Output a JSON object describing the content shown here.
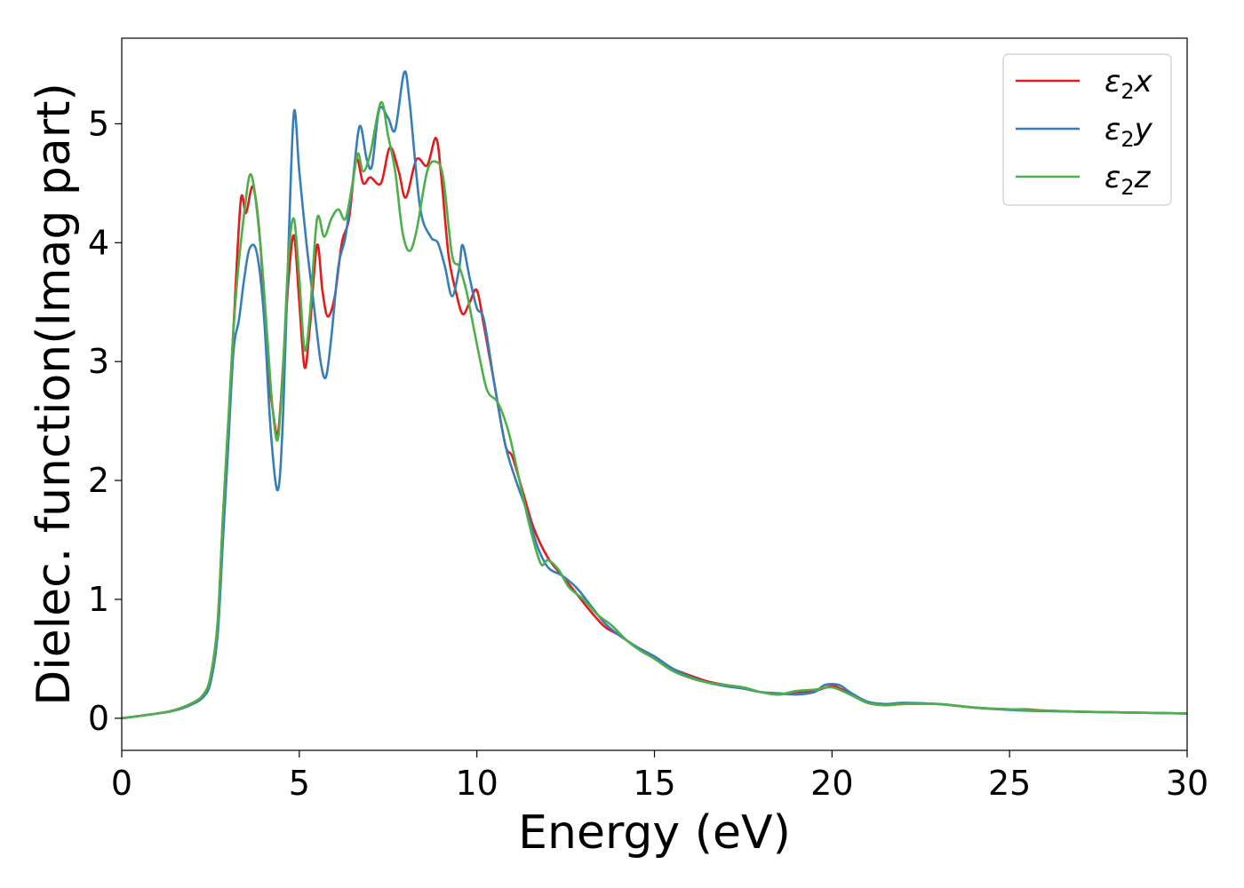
{
  "chart_data": {
    "type": "line",
    "xlabel": "Energy (eV)",
    "ylabel": "Dielec. function(Imag part)",
    "xlim": [
      0,
      30
    ],
    "ylim": [
      -0.27,
      5.72
    ],
    "xticks": [
      0,
      5,
      10,
      15,
      20,
      25,
      30
    ],
    "yticks": [
      0,
      1,
      2,
      3,
      4,
      5
    ],
    "grid": false,
    "legend_position": "top-right",
    "legend_symbol": "ε",
    "legend_subscript": "2",
    "series": [
      {
        "name": "ε2x",
        "legend_suffix": "x",
        "color": "#e41a1c",
        "points": [
          [
            0,
            0
          ],
          [
            1,
            0.04
          ],
          [
            1.5,
            0.07
          ],
          [
            2,
            0.13
          ],
          [
            2.3,
            0.2
          ],
          [
            2.5,
            0.35
          ],
          [
            2.7,
            0.8
          ],
          [
            2.85,
            1.7
          ],
          [
            3.0,
            2.45
          ],
          [
            3.15,
            3.3
          ],
          [
            3.35,
            4.35
          ],
          [
            3.5,
            4.25
          ],
          [
            3.7,
            4.47
          ],
          [
            3.9,
            4.0
          ],
          [
            4.1,
            3.0
          ],
          [
            4.25,
            2.6
          ],
          [
            4.4,
            2.4
          ],
          [
            4.55,
            3.0
          ],
          [
            4.7,
            3.7
          ],
          [
            4.85,
            4.06
          ],
          [
            5.0,
            3.5
          ],
          [
            5.15,
            2.95
          ],
          [
            5.3,
            3.3
          ],
          [
            5.5,
            3.98
          ],
          [
            5.65,
            3.6
          ],
          [
            5.8,
            3.38
          ],
          [
            6.0,
            3.55
          ],
          [
            6.2,
            4.0
          ],
          [
            6.4,
            4.2
          ],
          [
            6.6,
            4.7
          ],
          [
            6.8,
            4.5
          ],
          [
            7.0,
            4.55
          ],
          [
            7.3,
            4.5
          ],
          [
            7.55,
            4.8
          ],
          [
            7.8,
            4.6
          ],
          [
            8.0,
            4.38
          ],
          [
            8.3,
            4.7
          ],
          [
            8.6,
            4.65
          ],
          [
            8.85,
            4.88
          ],
          [
            9.0,
            4.55
          ],
          [
            9.2,
            3.9
          ],
          [
            9.4,
            3.6
          ],
          [
            9.6,
            3.4
          ],
          [
            9.8,
            3.5
          ],
          [
            10.0,
            3.6
          ],
          [
            10.2,
            3.3
          ],
          [
            10.5,
            2.8
          ],
          [
            10.8,
            2.3
          ],
          [
            11.0,
            2.2
          ],
          [
            11.3,
            1.9
          ],
          [
            11.6,
            1.6
          ],
          [
            12.0,
            1.35
          ],
          [
            12.4,
            1.2
          ],
          [
            12.8,
            1.05
          ],
          [
            13.2,
            0.9
          ],
          [
            13.6,
            0.77
          ],
          [
            14.0,
            0.7
          ],
          [
            14.5,
            0.6
          ],
          [
            15.0,
            0.52
          ],
          [
            15.5,
            0.42
          ],
          [
            16.0,
            0.36
          ],
          [
            16.5,
            0.31
          ],
          [
            17.0,
            0.28
          ],
          [
            17.5,
            0.25
          ],
          [
            18.0,
            0.22
          ],
          [
            18.5,
            0.2
          ],
          [
            19.0,
            0.22
          ],
          [
            19.5,
            0.23
          ],
          [
            20.0,
            0.27
          ],
          [
            20.3,
            0.24
          ],
          [
            20.7,
            0.18
          ],
          [
            21.0,
            0.13
          ],
          [
            21.5,
            0.11
          ],
          [
            22.0,
            0.12
          ],
          [
            23.0,
            0.12
          ],
          [
            24.0,
            0.09
          ],
          [
            25.0,
            0.075
          ],
          [
            25.5,
            0.075
          ],
          [
            26.0,
            0.065
          ],
          [
            27.0,
            0.055
          ],
          [
            28.0,
            0.05
          ],
          [
            29.0,
            0.045
          ],
          [
            30.0,
            0.04
          ]
        ]
      },
      {
        "name": "ε2y",
        "legend_suffix": "y",
        "color": "#377eb8",
        "points": [
          [
            0,
            0
          ],
          [
            1,
            0.04
          ],
          [
            1.5,
            0.065
          ],
          [
            2,
            0.12
          ],
          [
            2.3,
            0.18
          ],
          [
            2.5,
            0.3
          ],
          [
            2.7,
            0.7
          ],
          [
            2.85,
            1.5
          ],
          [
            3.0,
            2.3
          ],
          [
            3.15,
            3.1
          ],
          [
            3.3,
            3.35
          ],
          [
            3.45,
            3.7
          ],
          [
            3.6,
            3.95
          ],
          [
            3.8,
            3.92
          ],
          [
            4.0,
            3.4
          ],
          [
            4.2,
            2.4
          ],
          [
            4.4,
            1.92
          ],
          [
            4.55,
            2.6
          ],
          [
            4.7,
            4.0
          ],
          [
            4.85,
            5.1
          ],
          [
            5.0,
            4.6
          ],
          [
            5.2,
            4.0
          ],
          [
            5.4,
            3.5
          ],
          [
            5.6,
            3.0
          ],
          [
            5.75,
            2.87
          ],
          [
            5.9,
            3.2
          ],
          [
            6.1,
            3.8
          ],
          [
            6.3,
            4.05
          ],
          [
            6.5,
            4.5
          ],
          [
            6.7,
            4.98
          ],
          [
            6.9,
            4.7
          ],
          [
            7.05,
            4.65
          ],
          [
            7.25,
            5.12
          ],
          [
            7.5,
            5.05
          ],
          [
            7.7,
            4.95
          ],
          [
            7.95,
            5.43
          ],
          [
            8.1,
            5.2
          ],
          [
            8.4,
            4.3
          ],
          [
            8.7,
            4.05
          ],
          [
            8.9,
            4.0
          ],
          [
            9.1,
            3.8
          ],
          [
            9.3,
            3.55
          ],
          [
            9.5,
            3.78
          ],
          [
            9.6,
            3.98
          ],
          [
            9.8,
            3.7
          ],
          [
            10.0,
            3.45
          ],
          [
            10.2,
            3.35
          ],
          [
            10.5,
            2.8
          ],
          [
            10.8,
            2.3
          ],
          [
            11.1,
            2.0
          ],
          [
            11.4,
            1.75
          ],
          [
            11.7,
            1.45
          ],
          [
            12.0,
            1.27
          ],
          [
            12.4,
            1.2
          ],
          [
            12.8,
            1.1
          ],
          [
            13.2,
            0.95
          ],
          [
            13.6,
            0.8
          ],
          [
            14.0,
            0.7
          ],
          [
            14.5,
            0.6
          ],
          [
            15.0,
            0.52
          ],
          [
            15.5,
            0.42
          ],
          [
            16.0,
            0.35
          ],
          [
            16.5,
            0.3
          ],
          [
            17.0,
            0.27
          ],
          [
            17.5,
            0.25
          ],
          [
            18.0,
            0.22
          ],
          [
            18.5,
            0.21
          ],
          [
            19.0,
            0.2
          ],
          [
            19.5,
            0.22
          ],
          [
            19.8,
            0.28
          ],
          [
            20.2,
            0.28
          ],
          [
            20.5,
            0.22
          ],
          [
            21.0,
            0.14
          ],
          [
            21.5,
            0.12
          ],
          [
            22.0,
            0.13
          ],
          [
            23.0,
            0.12
          ],
          [
            24.0,
            0.09
          ],
          [
            25.0,
            0.07
          ],
          [
            26.0,
            0.06
          ],
          [
            27.0,
            0.055
          ],
          [
            28.0,
            0.05
          ],
          [
            29.0,
            0.045
          ],
          [
            30.0,
            0.04
          ]
        ]
      },
      {
        "name": "ε2z",
        "legend_suffix": "z",
        "color": "#4daf4a",
        "points": [
          [
            0,
            0
          ],
          [
            1,
            0.04
          ],
          [
            1.5,
            0.07
          ],
          [
            2,
            0.13
          ],
          [
            2.3,
            0.2
          ],
          [
            2.5,
            0.35
          ],
          [
            2.7,
            0.8
          ],
          [
            2.85,
            1.7
          ],
          [
            3.0,
            2.5
          ],
          [
            3.2,
            3.5
          ],
          [
            3.45,
            4.25
          ],
          [
            3.65,
            4.57
          ],
          [
            3.9,
            4.0
          ],
          [
            4.1,
            3.2
          ],
          [
            4.25,
            2.6
          ],
          [
            4.4,
            2.35
          ],
          [
            4.55,
            3.0
          ],
          [
            4.7,
            3.9
          ],
          [
            4.85,
            4.2
          ],
          [
            5.0,
            3.7
          ],
          [
            5.15,
            3.1
          ],
          [
            5.3,
            3.4
          ],
          [
            5.5,
            4.2
          ],
          [
            5.7,
            4.05
          ],
          [
            5.9,
            4.2
          ],
          [
            6.1,
            4.28
          ],
          [
            6.3,
            4.2
          ],
          [
            6.5,
            4.5
          ],
          [
            6.65,
            4.75
          ],
          [
            6.8,
            4.6
          ],
          [
            7.0,
            4.75
          ],
          [
            7.3,
            5.18
          ],
          [
            7.5,
            4.9
          ],
          [
            7.7,
            4.6
          ],
          [
            7.9,
            4.1
          ],
          [
            8.1,
            3.93
          ],
          [
            8.3,
            4.1
          ],
          [
            8.6,
            4.6
          ],
          [
            8.85,
            4.68
          ],
          [
            9.05,
            4.55
          ],
          [
            9.3,
            3.9
          ],
          [
            9.5,
            3.8
          ],
          [
            9.7,
            3.6
          ],
          [
            9.9,
            3.3
          ],
          [
            10.1,
            3.0
          ],
          [
            10.3,
            2.75
          ],
          [
            10.6,
            2.65
          ],
          [
            10.9,
            2.4
          ],
          [
            11.2,
            2.0
          ],
          [
            11.5,
            1.6
          ],
          [
            11.8,
            1.3
          ],
          [
            12.0,
            1.33
          ],
          [
            12.3,
            1.25
          ],
          [
            12.6,
            1.1
          ],
          [
            13.0,
            1.0
          ],
          [
            13.4,
            0.87
          ],
          [
            13.8,
            0.78
          ],
          [
            14.2,
            0.66
          ],
          [
            14.6,
            0.57
          ],
          [
            15.0,
            0.5
          ],
          [
            15.5,
            0.4
          ],
          [
            16.0,
            0.34
          ],
          [
            16.5,
            0.3
          ],
          [
            17.0,
            0.28
          ],
          [
            17.5,
            0.26
          ],
          [
            18.0,
            0.22
          ],
          [
            18.5,
            0.2
          ],
          [
            19.0,
            0.23
          ],
          [
            19.5,
            0.24
          ],
          [
            20.0,
            0.26
          ],
          [
            20.5,
            0.2
          ],
          [
            21.0,
            0.13
          ],
          [
            21.5,
            0.11
          ],
          [
            22.0,
            0.12
          ],
          [
            23.0,
            0.12
          ],
          [
            24.0,
            0.09
          ],
          [
            25.0,
            0.075
          ],
          [
            26.0,
            0.065
          ],
          [
            27.0,
            0.055
          ],
          [
            28.0,
            0.05
          ],
          [
            29.0,
            0.045
          ],
          [
            30.0,
            0.04
          ]
        ]
      }
    ]
  }
}
